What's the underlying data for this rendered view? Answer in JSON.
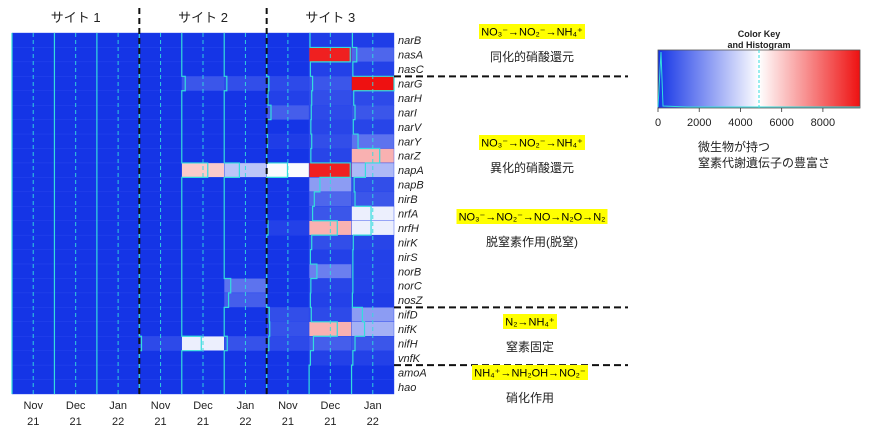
{
  "chart_data": {
    "type": "heatmap",
    "sites": [
      "サイト 1",
      "サイト 2",
      "サイト 3"
    ],
    "columns": [
      {
        "month": "Nov",
        "year": "21"
      },
      {
        "month": "Dec",
        "year": "21"
      },
      {
        "month": "Jan",
        "year": "22"
      },
      {
        "month": "Nov",
        "year": "21"
      },
      {
        "month": "Dec",
        "year": "21"
      },
      {
        "month": "Jan",
        "year": "22"
      },
      {
        "month": "Nov",
        "year": "21"
      },
      {
        "month": "Dec",
        "year": "21"
      },
      {
        "month": "Jan",
        "year": "22"
      }
    ],
    "genes": [
      "narB",
      "nasA",
      "nasC",
      "narG",
      "narH",
      "narI",
      "narV",
      "narY",
      "narZ",
      "napA",
      "napB",
      "nirB",
      "nrfA",
      "nrfH",
      "nirK",
      "nirS",
      "norB",
      "norC",
      "nosZ",
      "nifD",
      "nifK",
      "nifH",
      "vnfK",
      "amoA",
      "hao"
    ],
    "values": [
      [
        0,
        0,
        0,
        0,
        0,
        0,
        0,
        200,
        200
      ],
      [
        0,
        0,
        0,
        0,
        0,
        0,
        0,
        9500,
        1200
      ],
      [
        0,
        0,
        0,
        0,
        0,
        0,
        0,
        300,
        300
      ],
      [
        0,
        0,
        0,
        0,
        800,
        600,
        500,
        800,
        9800
      ],
      [
        0,
        0,
        0,
        0,
        0,
        0,
        300,
        600,
        500
      ],
      [
        0,
        0,
        0,
        0,
        0,
        0,
        1000,
        500,
        800
      ],
      [
        0,
        0,
        0,
        0,
        0,
        0,
        0,
        400,
        400
      ],
      [
        0,
        0,
        0,
        0,
        0,
        0,
        200,
        600,
        1500
      ],
      [
        0,
        0,
        0,
        0,
        0,
        0,
        0,
        400,
        6500
      ],
      [
        0,
        0,
        0,
        0,
        6000,
        3500,
        4800,
        9500,
        3200
      ],
      [
        0,
        0,
        0,
        0,
        0,
        0,
        0,
        2500,
        600
      ],
      [
        0,
        0,
        0,
        0,
        0,
        0,
        0,
        1200,
        800
      ],
      [
        0,
        0,
        0,
        0,
        0,
        0,
        0,
        800,
        4500
      ],
      [
        0,
        0,
        0,
        0,
        0,
        0,
        300,
        6500,
        4500
      ],
      [
        0,
        0,
        0,
        0,
        0,
        0,
        0,
        600,
        400
      ],
      [
        0,
        0,
        0,
        0,
        0,
        0,
        0,
        300,
        300
      ],
      [
        0,
        0,
        0,
        0,
        0,
        0,
        0,
        1800,
        300
      ],
      [
        0,
        0,
        0,
        0,
        0,
        1500,
        0,
        400,
        300
      ],
      [
        0,
        0,
        0,
        0,
        0,
        1000,
        0,
        300,
        200
      ],
      [
        0,
        0,
        0,
        0,
        0,
        0,
        600,
        500,
        2500
      ],
      [
        0,
        0,
        0,
        0,
        0,
        0,
        700,
        6500,
        3000
      ],
      [
        0,
        0,
        0,
        500,
        4500,
        700,
        500,
        1000,
        800
      ],
      [
        0,
        0,
        0,
        0,
        0,
        0,
        0,
        300,
        300
      ],
      [
        0,
        0,
        0,
        0,
        0,
        0,
        0,
        0,
        0
      ],
      [
        0,
        0,
        0,
        0,
        0,
        0,
        0,
        0,
        0
      ]
    ],
    "value_range": [
      0,
      9800
    ],
    "colors": {
      "low": "#1535e6",
      "mid": "#ffffff",
      "high": "#ee1111",
      "cell_border": "#33dddd",
      "trace": "#33dddd"
    },
    "legend": {
      "title_line1": "Color Key",
      "title_line2": "and Histogram",
      "ticks": [
        0,
        2000,
        4000,
        6000,
        8000
      ],
      "description_line1": "微生物が持つ",
      "description_line2": "窒素代謝遺伝子の豊富さ"
    },
    "groups": [
      {
        "formula": "NO₃⁻→NO₂⁻→NH₄⁺",
        "description": "同化的硝酸還元"
      },
      {
        "formula": "NO₃⁻→NO₂⁻→NH₄⁺",
        "description": "異化的硝酸還元"
      },
      {
        "formula": "NO₃⁻→NO₂⁻→NO→N₂O→N₂",
        "description": "脱窒素作用(脱窒)"
      },
      {
        "formula": "N₂→NH₄⁺",
        "description": "窒素固定"
      },
      {
        "formula": "NH₄⁺→NH₂OH→NO₂⁻",
        "description": "硝化作用"
      }
    ],
    "highlight_color": "#ffff00"
  }
}
